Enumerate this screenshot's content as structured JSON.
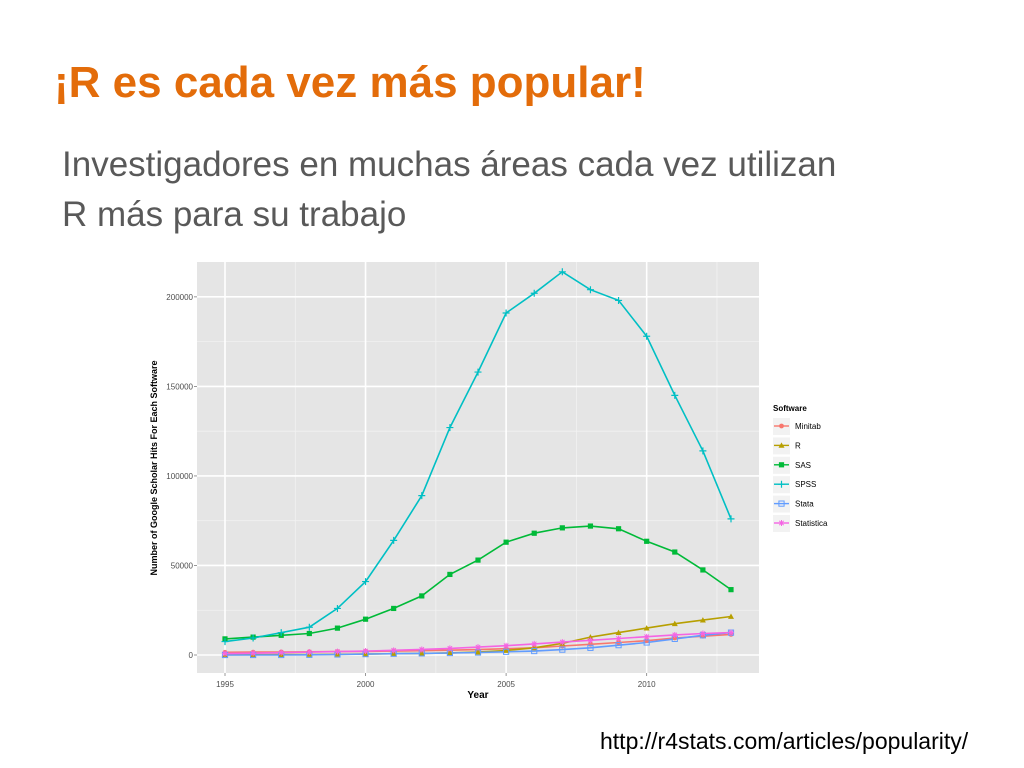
{
  "slide": {
    "title": "¡R es cada vez más popular!",
    "subtitle_line1": "Investigadores en muchas áreas cada vez utilizan",
    "subtitle_line2": "R más para su trabajo",
    "source_url": "http://r4stats.com/articles/popularity/"
  },
  "chart_data": {
    "type": "line",
    "xlabel": "Year",
    "ylabel": "Number of Google Scholar Hits For Each Software",
    "xlim": [
      1995,
      2013
    ],
    "ylim": [
      0,
      215000
    ],
    "xticks": [
      1995,
      2000,
      2005,
      2010
    ],
    "yticks": [
      0,
      50000,
      100000,
      150000,
      200000
    ],
    "grid": true,
    "legend": {
      "title": "Software",
      "placement": "right"
    },
    "x": [
      1995,
      1996,
      1997,
      1998,
      1999,
      2000,
      2001,
      2002,
      2003,
      2004,
      2005,
      2006,
      2007,
      2008,
      2009,
      2010,
      2011,
      2012,
      2013
    ],
    "series": [
      {
        "name": "Minitab",
        "color": "#f8766d",
        "marker": "circle",
        "values": [
          1500,
          1600,
          1700,
          1800,
          1900,
          2000,
          2200,
          2400,
          2700,
          3000,
          3500,
          4000,
          5000,
          6000,
          7000,
          8000,
          9500,
          10500,
          11500
        ]
      },
      {
        "name": "R",
        "color": "#b79f00",
        "marker": "triangle",
        "values": [
          100,
          150,
          200,
          300,
          400,
          500,
          700,
          900,
          1200,
          1600,
          2500,
          4000,
          6500,
          10000,
          12500,
          15000,
          17500,
          19500,
          21500
        ]
      },
      {
        "name": "SAS",
        "color": "#00ba38",
        "marker": "square",
        "values": [
          9000,
          10000,
          11000,
          12000,
          15000,
          20000,
          26000,
          33000,
          45000,
          53000,
          63000,
          68000,
          71000,
          72000,
          70500,
          63500,
          57500,
          47500,
          36500
        ]
      },
      {
        "name": "SPSS",
        "color": "#00bfc4",
        "marker": "plus",
        "values": [
          7500,
          9500,
          12500,
          15500,
          26000,
          41000,
          64000,
          89000,
          127000,
          158000,
          191000,
          202000,
          214000,
          204000,
          198000,
          178000,
          145000,
          114000,
          76000
        ]
      },
      {
        "name": "Stata",
        "color": "#619cff",
        "marker": "square-open",
        "values": [
          0,
          0,
          0,
          100,
          300,
          500,
          700,
          900,
          1100,
          1400,
          1800,
          2200,
          3000,
          4000,
          5500,
          7000,
          9000,
          11000,
          12500
        ]
      },
      {
        "name": "Statistica",
        "color": "#f564e3",
        "marker": "star",
        "values": [
          800,
          1000,
          1300,
          1600,
          1900,
          2200,
          2600,
          3100,
          3700,
          4400,
          5200,
          6200,
          7200,
          8200,
          9200,
          10200,
          11200,
          12000,
          12500
        ]
      }
    ]
  }
}
